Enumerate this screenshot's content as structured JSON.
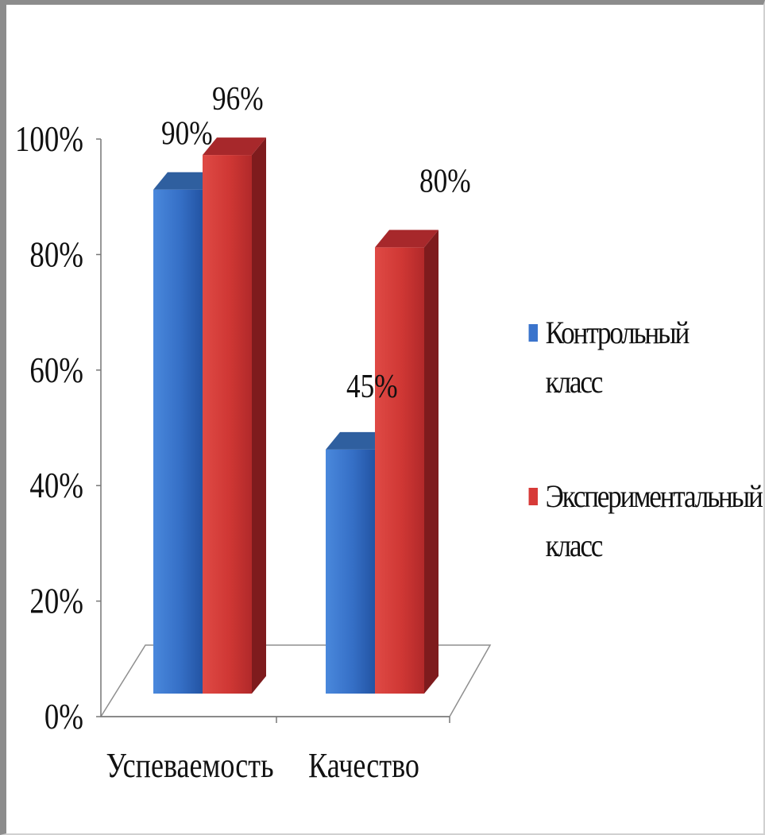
{
  "chart_data": {
    "type": "bar",
    "categories": [
      "Успеваемость",
      "Качество"
    ],
    "series": [
      {
        "name": "Контрольный класс",
        "values": [
          90,
          45
        ],
        "labels": [
          "90%",
          "45%"
        ],
        "color": "#3a74cc"
      },
      {
        "name": "Экспериментальный класс",
        "values": [
          96,
          80
        ],
        "labels": [
          "96%",
          "80%"
        ],
        "color": "#d73a38"
      }
    ],
    "ylim": [
      0,
      100
    ],
    "yticks": [
      "0%",
      "20%",
      "40%",
      "60%",
      "80%",
      "100%"
    ],
    "legend_position": "right",
    "style": "3d-column"
  }
}
